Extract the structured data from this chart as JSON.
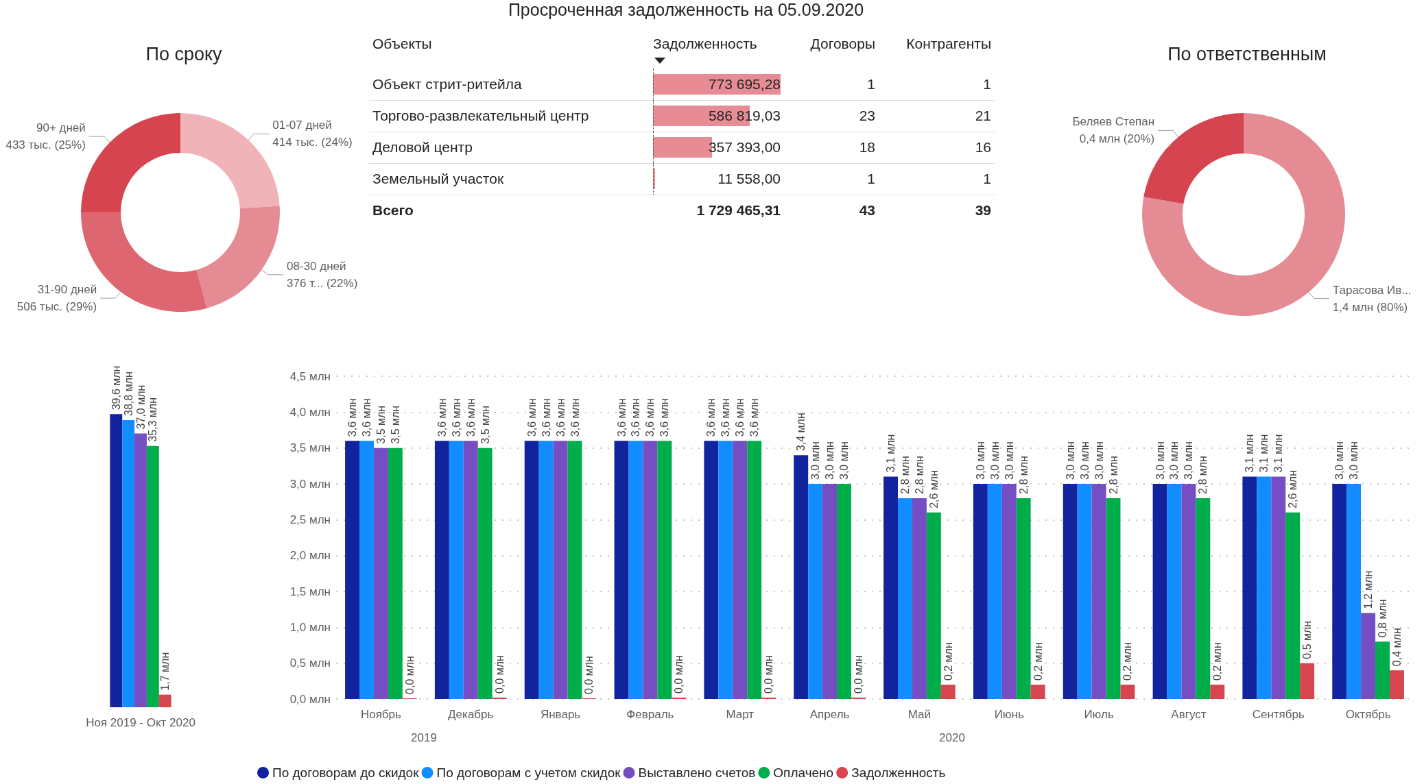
{
  "chart_data": [
    {
      "type": "donut",
      "title": "По сроку",
      "categories": [
        "01-07 дней",
        "08-30 дней",
        "31-90 дней",
        "90+ дней"
      ],
      "values": [
        414,
        376,
        506,
        433
      ],
      "value_labels": [
        "414 тыс. (24%)",
        "376 т... (22%)",
        "506 тыс. (29%)",
        "433 тыс. (25%)"
      ],
      "colors": [
        "#efb3b8",
        "#e48b93",
        "#de6670",
        "#d64450"
      ]
    },
    {
      "type": "other",
      "title": "Просроченная задолженность на 05.09.2020",
      "ylabel": "Объекты",
      "categories": [
        "Объект стрит-ритейла",
        "Торгово-развлекательный центр",
        "Деловой центр",
        "Земельный участок"
      ],
      "series": [
        {
          "name": "Задолженность",
          "type": "bar",
          "color": "#e78c94",
          "values": [
            773695.28,
            586819.03,
            357393.0,
            11558.0
          ],
          "value_labels": [
            "773 695,28",
            "586 819,03",
            "357 393,00",
            "11 558,00"
          ]
        },
        {
          "name": "Договоры",
          "values": [
            1,
            23,
            18,
            1
          ]
        },
        {
          "name": "Контрагенты",
          "values": [
            1,
            21,
            16,
            1
          ]
        }
      ],
      "data_labels": true,
      "annotations": [
        "Всего",
        "1 729 465,31",
        "43",
        "39"
      ]
    },
    {
      "type": "donut",
      "title": "По ответственным",
      "categories": [
        "Тарасова Ив...",
        "Беляев Степан"
      ],
      "values": [
        1.4,
        0.4
      ],
      "value_labels": [
        "1,4 млн (80%)",
        "0,4 млн (20%)"
      ],
      "colors": [
        "#e48b93",
        "#d64450"
      ]
    },
    {
      "type": "bar",
      "categories": [
        "Ноя 2019 - Окт 2020"
      ],
      "series": [
        {
          "color": "#12239e",
          "values": [
            39.6
          ],
          "value_labels": [
            "39,6 млн"
          ]
        },
        {
          "color": "#118dff",
          "values": [
            38.8
          ],
          "value_labels": [
            "38,8 млн"
          ]
        },
        {
          "color": "#744ec2",
          "values": [
            37.0
          ],
          "value_labels": [
            "37,0 млн"
          ]
        },
        {
          "color": "#00ad4b",
          "values": [
            35.3
          ],
          "value_labels": [
            "35,3 млн"
          ]
        },
        {
          "color": "#d64550",
          "values": [
            1.7
          ],
          "value_labels": [
            "1,7 млн"
          ]
        }
      ]
    },
    {
      "type": "bar",
      "categories": [
        "Ноябрь",
        "Декабрь",
        "Январь",
        "Февраль",
        "Март",
        "Апрель",
        "Май",
        "Июнь",
        "Июль",
        "Август",
        "Сентябрь",
        "Октябрь"
      ],
      "ylim": [
        0,
        4.5
      ],
      "yticks": [
        {
          "value": 0,
          "label": "0,0 млн"
        },
        {
          "value": 0.5,
          "label": "0,5 млн"
        },
        {
          "value": 1,
          "label": "1,0 млн"
        },
        {
          "value": 1.5,
          "label": "1,5 млн"
        },
        {
          "value": 2,
          "label": "2,0 млн"
        },
        {
          "value": 2.5,
          "label": "2,5 млн"
        },
        {
          "value": 3,
          "label": "3,0 млн"
        },
        {
          "value": 3.5,
          "label": "3,5 млн"
        },
        {
          "value": 4,
          "label": "4,0 млн"
        },
        {
          "value": 4.5,
          "label": "4,5 млн"
        }
      ],
      "grid": "y",
      "legend": "bottom",
      "annotations": [
        "2019",
        "2020"
      ],
      "series": [
        {
          "name": "По договорам до скидок",
          "color": "#12239e",
          "values": [
            3.6,
            3.6,
            3.6,
            3.6,
            3.6,
            3.4,
            3.1,
            3.0,
            3.0,
            3.0,
            3.1,
            3.0
          ],
          "value_labels": [
            "3,6 млн",
            "3,6 млн",
            "3,6 млн",
            "3,6 млн",
            "3,6 млн",
            "3,4 млн",
            "3,1 млн",
            "3,0 млн",
            "3,0 млн",
            "3,0 млн",
            "3,1 млн",
            "3,0 млн"
          ]
        },
        {
          "name": "По договорам с учетом скидок",
          "color": "#118dff",
          "values": [
            3.6,
            3.6,
            3.6,
            3.6,
            3.6,
            3.0,
            2.8,
            3.0,
            3.0,
            3.0,
            3.1,
            3.0
          ],
          "value_labels": [
            "3,6 млн",
            "3,6 млн",
            "3,6 млн",
            "3,6 млн",
            "3,6 млн",
            "3,0 млн",
            "2,8 млн",
            "3,0 млн",
            "3,0 млн",
            "3,0 млн",
            "3,1 млн",
            "3,0 млн"
          ]
        },
        {
          "name": "Выставлено счетов",
          "color": "#744ec2",
          "values": [
            3.5,
            3.6,
            3.6,
            3.6,
            3.6,
            3.0,
            2.8,
            3.0,
            3.0,
            3.0,
            3.1,
            1.2
          ],
          "value_labels": [
            "3,5 млн",
            "3,6 млн",
            "3,6 млн",
            "3,6 млн",
            "3,6 млн",
            "3,0 млн",
            "2,8 млн",
            "3,0 млн",
            "3,0 млн",
            "3,0 млн",
            "3,1 млн",
            "1,2 млн"
          ]
        },
        {
          "name": "Оплачено",
          "color": "#00ad4b",
          "values": [
            3.5,
            3.5,
            3.6,
            3.6,
            3.6,
            3.0,
            2.6,
            2.8,
            2.8,
            2.8,
            2.6,
            0.8
          ],
          "value_labels": [
            "3,5 млн",
            "3,5 млн",
            "3,6 млн",
            "3,6 млн",
            "3,6 млн",
            "3,0 млн",
            "2,6 млн",
            "2,8 млн",
            "2,8 млн",
            "2,8 млн",
            "2,6 млн",
            "0,8 млн"
          ]
        },
        {
          "name": "Задолженность",
          "color": "#d64550",
          "values": [
            0.01,
            0.02,
            0.01,
            0.02,
            0.02,
            0.02,
            0.2,
            0.2,
            0.2,
            0.2,
            0.5,
            0.4
          ],
          "value_labels": [
            "0,0 млн",
            "0,0 млн",
            "0,0 млн",
            "0,0 млн",
            "0,0 млн",
            "0,0 млн",
            "0,2 млн",
            "0,2 млн",
            "0,2 млн",
            "0,2 млн",
            "0,5 млн",
            "0,4 млн"
          ]
        }
      ]
    }
  ]
}
